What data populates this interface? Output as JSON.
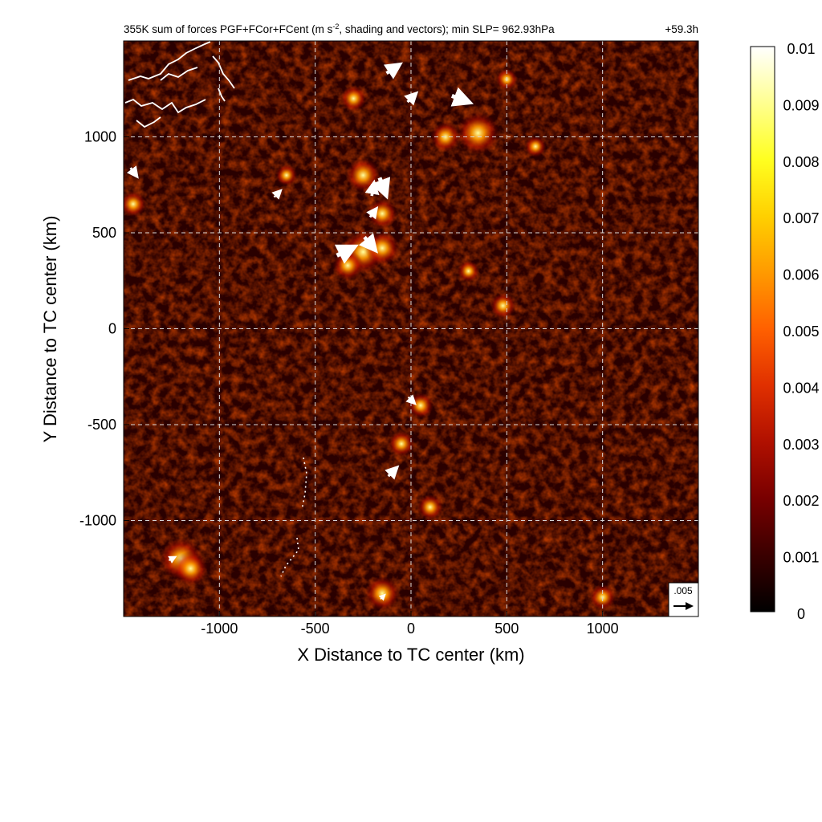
{
  "chart_data": {
    "type": "heatmap",
    "title": "355K sum of forces PGF+FCor+FCent (m s",
    "title_superscript": "-2",
    "title_rest": ", shading and vectors); min SLP= 962.93hPa",
    "time_label": "+59.3h",
    "xlabel": "X Distance to TC center (km)",
    "ylabel": "Y Distance to TC center (km)",
    "xlim": [
      -1500,
      1500
    ],
    "ylim": [
      -1500,
      1500
    ],
    "x_ticks": [
      -1000,
      -500,
      0,
      500,
      1000
    ],
    "x_tick_labels": [
      "-1000",
      "-500",
      "0",
      "500",
      "1000"
    ],
    "y_ticks": [
      -1000,
      -500,
      0,
      500,
      1000
    ],
    "y_tick_labels": [
      "-1000",
      "-500",
      "0",
      "500",
      "1000"
    ],
    "grid": true,
    "grid_style": "dashed",
    "colorbar": {
      "min": 0,
      "max": 0.01,
      "ticks": [
        0,
        0.001,
        0.002,
        0.003,
        0.004,
        0.005,
        0.006,
        0.007,
        0.008,
        0.009,
        0.01
      ],
      "tick_labels": [
        "0",
        "0.001",
        "0.002",
        "0.003",
        "0.004",
        "0.005",
        "0.006",
        "0.007",
        "0.008",
        "0.009",
        "0.01"
      ],
      "colormap": [
        "#000000",
        "#3a0000",
        "#780000",
        "#b01000",
        "#e03000",
        "#ff6000",
        "#ff9a00",
        "#ffd000",
        "#ffff20",
        "#ffff90",
        "#ffffff"
      ]
    },
    "reference_vector": {
      "label": ".005",
      "magnitude": 0.005
    },
    "hotspots": [
      {
        "x": -250,
        "y": 400,
        "value": 0.008
      },
      {
        "x": -330,
        "y": 330,
        "value": 0.005
      },
      {
        "x": -150,
        "y": 420,
        "value": 0.006
      },
      {
        "x": 350,
        "y": 1020,
        "value": 0.008
      },
      {
        "x": 180,
        "y": 1000,
        "value": 0.005
      },
      {
        "x": -250,
        "y": 800,
        "value": 0.006
      },
      {
        "x": -150,
        "y": 600,
        "value": 0.005
      },
      {
        "x": -300,
        "y": 1200,
        "value": 0.004
      },
      {
        "x": -1200,
        "y": -1200,
        "value": 0.008
      },
      {
        "x": -1150,
        "y": -1250,
        "value": 0.006
      },
      {
        "x": -150,
        "y": -1380,
        "value": 0.006
      },
      {
        "x": -50,
        "y": -600,
        "value": 0.004
      },
      {
        "x": 50,
        "y": -400,
        "value": 0.004
      },
      {
        "x": 100,
        "y": -930,
        "value": 0.004
      },
      {
        "x": 480,
        "y": 120,
        "value": 0.004
      },
      {
        "x": 1000,
        "y": -1400,
        "value": 0.004
      },
      {
        "x": 650,
        "y": 950,
        "value": 0.003
      },
      {
        "x": 500,
        "y": 1300,
        "value": 0.003
      },
      {
        "x": -1450,
        "y": 650,
        "value": 0.004
      },
      {
        "x": -650,
        "y": 800,
        "value": 0.003
      },
      {
        "x": 300,
        "y": 300,
        "value": 0.003
      }
    ],
    "vectors": [
      {
        "x": -100,
        "y": 1350,
        "u": 0.003,
        "v": 0.002
      },
      {
        "x": 250,
        "y": 1200,
        "u": 0.004,
        "v": -0.0015
      },
      {
        "x": 0,
        "y": 1200,
        "u": 0.002,
        "v": 0.002
      },
      {
        "x": -150,
        "y": 750,
        "u": 0.0015,
        "v": -0.004
      },
      {
        "x": -200,
        "y": 720,
        "u": 0.0005,
        "v": 0.003
      },
      {
        "x": -200,
        "y": 600,
        "u": 0.0015,
        "v": 0.002
      },
      {
        "x": -350,
        "y": 400,
        "u": 0.004,
        "v": 0.002
      },
      {
        "x": -220,
        "y": 450,
        "u": 0.0025,
        "v": -0.003
      },
      {
        "x": -700,
        "y": 700,
        "u": 0.0015,
        "v": 0.0015
      },
      {
        "x": -1450,
        "y": 820,
        "u": 0.0015,
        "v": -0.002
      },
      {
        "x": -100,
        "y": -750,
        "u": 0.002,
        "v": 0.002
      },
      {
        "x": 0,
        "y": -370,
        "u": 0.0015,
        "v": -0.0015
      },
      {
        "x": -1250,
        "y": -1200,
        "u": 0.0015,
        "v": 0.0008
      },
      {
        "x": -150,
        "y": -1400,
        "u": 0.001,
        "v": 0.001
      }
    ]
  }
}
